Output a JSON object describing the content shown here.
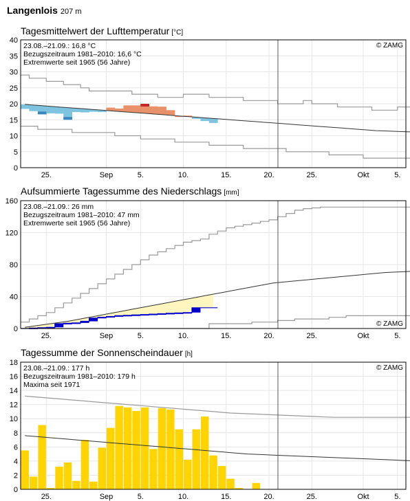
{
  "station": {
    "name": "Langenlois",
    "altitude": "207 m"
  },
  "copyright": "© ZAMG",
  "colors": {
    "warm": "#e8916b",
    "warm_dark": "#c62828",
    "cool": "#7ec3df",
    "cool_dark": "#3a86c0",
    "rain_fill": "#fff6bf",
    "rain_current": "#0000cc",
    "sun": "#ffd400",
    "grid": "#e6e6e6",
    "extreme": "#999999",
    "normal": "#333333"
  },
  "x_axis": {
    "labels": [
      "25.",
      "Sep",
      "5.",
      "10.",
      "15.",
      "20.",
      "25.",
      "Okt",
      "5."
    ]
  },
  "chart_data": [
    {
      "type": "line",
      "title": "Tagesmittelwert der Lufttemperatur",
      "unit": "[°C]",
      "ylim": [
        0,
        40
      ],
      "yticks": [
        0,
        5,
        10,
        15,
        20,
        25,
        30,
        35,
        40
      ],
      "info": [
        "23.08.–21.09.: 16,8 °C",
        "Bezugszeitraum 1981–2010: 16,6 °C",
        "Extremwerte seit 1965 (56 Jahre)"
      ],
      "days_shown": 23,
      "daily": [
        18.4,
        17.7,
        16.7,
        17.0,
        16.9,
        15.0,
        17.4,
        17.3,
        17.5,
        17.4,
        18.8,
        18.5,
        19.5,
        19.5,
        20.0,
        19.2,
        19.1,
        18.0,
        16.2,
        16.3,
        15.3,
        14.6,
        14.0
      ],
      "normal": [
        19.8,
        19.6,
        19.4,
        19.2,
        19.0,
        18.8,
        18.6,
        18.4,
        18.2,
        18.0,
        17.8,
        17.6,
        17.4,
        17.2,
        17.0,
        16.8,
        16.6,
        16.4,
        16.2,
        16.0,
        15.8,
        15.6,
        15.4,
        15.2,
        15.0,
        14.8,
        14.6,
        14.4,
        14.2,
        14.0,
        13.8,
        13.6,
        13.4,
        13.2,
        13.0,
        12.8,
        12.6,
        12.4,
        12.2,
        12.0,
        11.8,
        11.6,
        11.5,
        11.4,
        11.3,
        11.2,
        11.1
      ],
      "extreme_max": [
        29,
        28,
        28,
        27,
        27,
        26,
        26,
        25,
        24,
        24,
        24,
        24,
        24,
        23,
        23,
        23,
        22,
        22,
        22,
        23,
        23,
        23,
        22,
        22,
        22,
        22,
        21,
        21,
        21,
        21,
        20,
        20,
        20,
        21,
        20,
        20,
        20,
        19,
        19,
        19,
        19,
        18,
        18,
        18,
        19,
        19,
        19
      ],
      "extreme_min": [
        13,
        13,
        12,
        12,
        12,
        12,
        11,
        11,
        11,
        11,
        11,
        10,
        10,
        10,
        9,
        9,
        9,
        9,
        8,
        8,
        8,
        8,
        7,
        7,
        7,
        7,
        6,
        6,
        6,
        6,
        6,
        5,
        5,
        5,
        5,
        5,
        4,
        4,
        4,
        4,
        3,
        3,
        3,
        3,
        3,
        3,
        3
      ]
    },
    {
      "type": "area",
      "title": "Aufsummierte Tagessumme des Niederschlags",
      "unit": "[mm]",
      "ylim": [
        0,
        160
      ],
      "yticks": [
        0,
        40,
        80,
        120,
        160
      ],
      "info": [
        "23.08.–21.09.: 26 mm",
        "Bezugszeitraum 1981–2010: 47 mm",
        "Extremwerte seit 1965 (56 Jahre)"
      ],
      "cumulative": [
        0,
        0.5,
        1,
        1.5,
        6,
        6.5,
        7,
        9,
        13,
        14,
        15,
        16,
        16.5,
        17,
        17.5,
        18,
        18.5,
        19,
        19.5,
        20,
        26,
        26,
        26
      ],
      "normal_cumulative": [
        1.5,
        3,
        4.5,
        6,
        7.5,
        9,
        11,
        13,
        15,
        17,
        19,
        21,
        23,
        25,
        27,
        29,
        31,
        33,
        35,
        37,
        39,
        41,
        43,
        45,
        47,
        49,
        51,
        53,
        55,
        57,
        58,
        59,
        60,
        61,
        62,
        63,
        64,
        65,
        66,
        67,
        68,
        69,
        70,
        70.5,
        71,
        71.5,
        72
      ],
      "extreme_max": [
        8,
        12,
        16,
        20,
        26,
        32,
        38,
        44,
        50,
        56,
        62,
        68,
        74,
        80,
        86,
        92,
        96,
        100,
        104,
        108,
        110,
        112,
        118,
        122,
        126,
        128,
        130,
        132,
        134,
        136,
        140,
        144,
        148,
        150,
        151,
        152,
        152,
        152,
        152,
        152,
        152,
        152,
        152,
        152,
        152,
        152,
        152
      ],
      "extreme_min": [
        0,
        0,
        0,
        0,
        0,
        0,
        0,
        0,
        0,
        0,
        0,
        0,
        0,
        0,
        0,
        0,
        0,
        0,
        0,
        0,
        0,
        0,
        6,
        6,
        6,
        6,
        6,
        8,
        8,
        8,
        10,
        10,
        12,
        12,
        12,
        12,
        14,
        14,
        16,
        16,
        16,
        16,
        16,
        16,
        16,
        16,
        16
      ]
    },
    {
      "type": "bar",
      "title": "Tagessumme der Sonnenscheindauer",
      "unit": "[h]",
      "ylim": [
        0,
        18
      ],
      "yticks": [
        0,
        2,
        4,
        6,
        8,
        10,
        12,
        14,
        16,
        18
      ],
      "info": [
        "23.08.–21.09.: 177 h",
        "Bezugszeitraum 1981–2010: 179 h",
        "Maxima seit 1971"
      ],
      "values": [
        5.5,
        1.8,
        9.1,
        0.2,
        3.2,
        3.8,
        1.2,
        7.0,
        1.1,
        5.9,
        8.7,
        11.8,
        11.6,
        11.1,
        11.6,
        5.7,
        11.5,
        11.3,
        8.5,
        4.2,
        8.5,
        10.3,
        4.8,
        3.3,
        1.5,
        0.2,
        0,
        0.9,
        0
      ],
      "normal": [
        7.6,
        7.5,
        7.4,
        7.3,
        7.2,
        7.1,
        7.0,
        6.9,
        6.8,
        6.7,
        6.6,
        6.5,
        6.4,
        6.3,
        6.2,
        6.1,
        6.0,
        5.9,
        5.8,
        5.7,
        5.6,
        5.5,
        5.4,
        5.3,
        5.2,
        5.1,
        5.0,
        4.95,
        4.9,
        4.85,
        4.8,
        4.75,
        4.7,
        4.65,
        4.6,
        4.55,
        4.5,
        4.45,
        4.4,
        4.35,
        4.3,
        4.25,
        4.2,
        4.15,
        4.1,
        4.05,
        4.0
      ],
      "maxima": [
        13.2,
        13.1,
        13.0,
        12.9,
        12.8,
        12.7,
        12.6,
        12.5,
        12.4,
        12.3,
        12.2,
        12.1,
        12.0,
        11.9,
        11.8,
        11.7,
        11.6,
        11.5,
        11.4,
        11.3,
        11.2,
        11.1,
        11.0,
        10.9,
        10.8,
        10.75,
        10.7,
        10.65,
        10.6,
        10.55,
        10.5,
        10.45,
        10.4,
        10.35,
        10.3,
        10.25,
        10.2,
        10.2,
        10.2,
        10.2,
        10.2,
        10.2,
        10.2,
        10.2,
        10.2,
        10.2,
        10.2
      ]
    }
  ]
}
